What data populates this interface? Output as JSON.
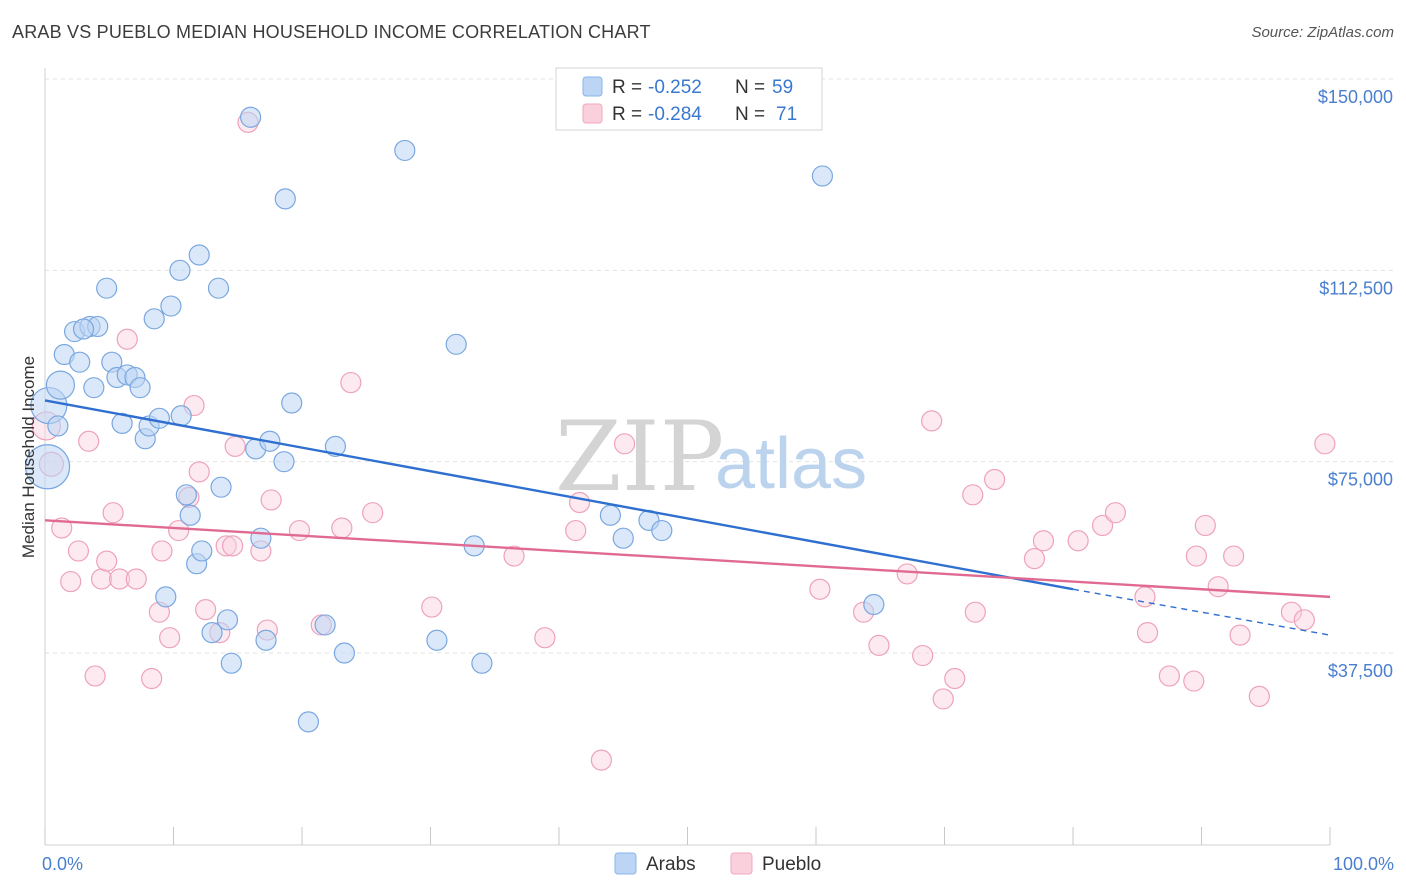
{
  "title": "ARAB VS PUEBLO MEDIAN HOUSEHOLD INCOME CORRELATION CHART",
  "source": "Source: ZipAtlas.com",
  "watermark": {
    "zip": "ZIP",
    "atlas": "atlas"
  },
  "colors": {
    "arabs": "#8ab4e8",
    "arabs_line": "#2f6fd0",
    "pueblo": "#f2a7be",
    "pueblo_line": "#e06a92"
  },
  "legend": {
    "rows": [
      {
        "r_label": "R =",
        "r_value": "-0.252",
        "n_label": "N =",
        "n_value": "59"
      },
      {
        "r_label": "R =",
        "r_value": "-0.284",
        "n_label": "N =",
        "n_value": "71"
      }
    ]
  },
  "chart_data": {
    "type": "scatter",
    "ylabel": "Median Household Income",
    "x_tick_labels": [
      "0.0%",
      "100.0%"
    ],
    "y_tick_labels": [
      "$150,000",
      "$112,500",
      "$75,000",
      "$37,500"
    ],
    "xlim": [
      0,
      100
    ],
    "ylim": [
      0,
      158000
    ],
    "y_ticks": [
      37500,
      75000,
      112500,
      150000
    ],
    "series": [
      {
        "name": "Arabs",
        "trend": {
          "x": [
            0,
            80
          ],
          "y": [
            87000,
            50000
          ],
          "dashed_to": [
            100,
            41000
          ]
        },
        "points": [
          [
            0.2,
            74000,
            22
          ],
          [
            0.3,
            86000,
            18
          ],
          [
            1.2,
            90000,
            14
          ],
          [
            1.5,
            96000,
            10
          ],
          [
            2.3,
            100500,
            10
          ],
          [
            2.7,
            94500,
            10
          ],
          [
            3.5,
            101500,
            10
          ],
          [
            3.8,
            89500,
            10
          ],
          [
            4.1,
            101500,
            10
          ],
          [
            4.8,
            109000,
            10
          ],
          [
            5.2,
            94500,
            10
          ],
          [
            5.6,
            91500,
            10
          ],
          [
            6.0,
            82500,
            10
          ],
          [
            6.4,
            92000,
            10
          ],
          [
            7.0,
            91500,
            10
          ],
          [
            7.4,
            89500,
            10
          ],
          [
            7.8,
            79500,
            10
          ],
          [
            8.1,
            82000,
            10
          ],
          [
            8.5,
            103000,
            10
          ],
          [
            8.9,
            83500,
            10
          ],
          [
            9.4,
            48500,
            10
          ],
          [
            9.8,
            105500,
            10
          ],
          [
            10.5,
            112500,
            10
          ],
          [
            10.6,
            84000,
            10
          ],
          [
            11.0,
            68500,
            10
          ],
          [
            11.3,
            64500,
            10
          ],
          [
            11.8,
            55000,
            10
          ],
          [
            12.0,
            115500,
            10
          ],
          [
            12.2,
            57500,
            10
          ],
          [
            13.0,
            41500,
            10
          ],
          [
            13.5,
            109000,
            10
          ],
          [
            13.7,
            70000,
            10
          ],
          [
            14.2,
            44000,
            10
          ],
          [
            14.5,
            35500,
            10
          ],
          [
            16.0,
            142500,
            10
          ],
          [
            16.4,
            77500,
            10
          ],
          [
            16.8,
            60000,
            10
          ],
          [
            17.2,
            40000,
            10
          ],
          [
            17.5,
            79000,
            10
          ],
          [
            18.6,
            75000,
            10
          ],
          [
            18.7,
            126500,
            10
          ],
          [
            19.2,
            86500,
            10
          ],
          [
            20.5,
            24000,
            10
          ],
          [
            21.8,
            43000,
            10
          ],
          [
            22.6,
            78000,
            10
          ],
          [
            23.3,
            37500,
            10
          ],
          [
            28.0,
            136000,
            10
          ],
          [
            30.5,
            40000,
            10
          ],
          [
            32.0,
            98000,
            10
          ],
          [
            33.4,
            58500,
            10
          ],
          [
            34.0,
            35500,
            10
          ],
          [
            44.0,
            64500,
            10
          ],
          [
            45.0,
            60000,
            10
          ],
          [
            47.0,
            63500,
            10
          ],
          [
            48.0,
            61500,
            10
          ],
          [
            60.5,
            131000,
            10
          ],
          [
            64.5,
            47000,
            10
          ],
          [
            1.0,
            82000,
            10
          ],
          [
            3.0,
            101000,
            10
          ]
        ]
      },
      {
        "name": "Pueblo",
        "trend": {
          "x": [
            0,
            100
          ],
          "y": [
            63500,
            48500
          ]
        },
        "points": [
          [
            0.1,
            82000,
            14
          ],
          [
            0.5,
            74500,
            12
          ],
          [
            1.3,
            62000,
            10
          ],
          [
            2.0,
            51500,
            10
          ],
          [
            2.6,
            57500,
            10
          ],
          [
            3.4,
            79000,
            10
          ],
          [
            3.9,
            33000,
            10
          ],
          [
            4.4,
            52000,
            10
          ],
          [
            4.8,
            55500,
            10
          ],
          [
            5.3,
            65000,
            10
          ],
          [
            5.8,
            52000,
            10
          ],
          [
            6.4,
            99000,
            10
          ],
          [
            7.1,
            52000,
            10
          ],
          [
            8.3,
            32500,
            10
          ],
          [
            8.9,
            45500,
            10
          ],
          [
            9.1,
            57500,
            10
          ],
          [
            9.7,
            40500,
            10
          ],
          [
            10.4,
            61500,
            10
          ],
          [
            11.2,
            68000,
            10
          ],
          [
            11.6,
            86000,
            10
          ],
          [
            12.0,
            73000,
            10
          ],
          [
            12.5,
            46000,
            10
          ],
          [
            13.6,
            41500,
            10
          ],
          [
            14.1,
            58500,
            10
          ],
          [
            14.6,
            58500,
            10
          ],
          [
            14.8,
            78000,
            10
          ],
          [
            15.8,
            141500,
            10
          ],
          [
            16.8,
            57500,
            10
          ],
          [
            17.3,
            42000,
            10
          ],
          [
            17.6,
            67500,
            10
          ],
          [
            19.8,
            61500,
            10
          ],
          [
            21.5,
            43000,
            10
          ],
          [
            23.1,
            62000,
            10
          ],
          [
            23.8,
            90500,
            10
          ],
          [
            25.5,
            65000,
            10
          ],
          [
            30.1,
            46500,
            10
          ],
          [
            36.5,
            56500,
            10
          ],
          [
            38.9,
            40500,
            10
          ],
          [
            41.3,
            61500,
            10
          ],
          [
            41.6,
            67000,
            10
          ],
          [
            43.3,
            16500,
            10
          ],
          [
            45.1,
            78500,
            10
          ],
          [
            60.3,
            50000,
            10
          ],
          [
            63.7,
            45500,
            10
          ],
          [
            64.9,
            39000,
            10
          ],
          [
            67.1,
            53000,
            10
          ],
          [
            68.3,
            37000,
            10
          ],
          [
            69.0,
            83000,
            10
          ],
          [
            69.9,
            28500,
            10
          ],
          [
            70.8,
            32500,
            10
          ],
          [
            72.2,
            68500,
            10
          ],
          [
            72.4,
            45500,
            10
          ],
          [
            73.9,
            71500,
            10
          ],
          [
            77.0,
            56000,
            10
          ],
          [
            77.7,
            59500,
            10
          ],
          [
            80.4,
            59500,
            10
          ],
          [
            82.3,
            62500,
            10
          ],
          [
            83.3,
            65000,
            10
          ],
          [
            85.6,
            48500,
            10
          ],
          [
            85.8,
            41500,
            10
          ],
          [
            87.5,
            33000,
            10
          ],
          [
            89.4,
            32000,
            10
          ],
          [
            89.6,
            56500,
            10
          ],
          [
            90.3,
            62500,
            10
          ],
          [
            91.3,
            50500,
            10
          ],
          [
            92.5,
            56500,
            10
          ],
          [
            93.0,
            41000,
            10
          ],
          [
            94.5,
            29000,
            10
          ],
          [
            97.0,
            45500,
            10
          ],
          [
            98.0,
            44000,
            10
          ],
          [
            99.6,
            78500,
            10
          ]
        ]
      }
    ]
  }
}
